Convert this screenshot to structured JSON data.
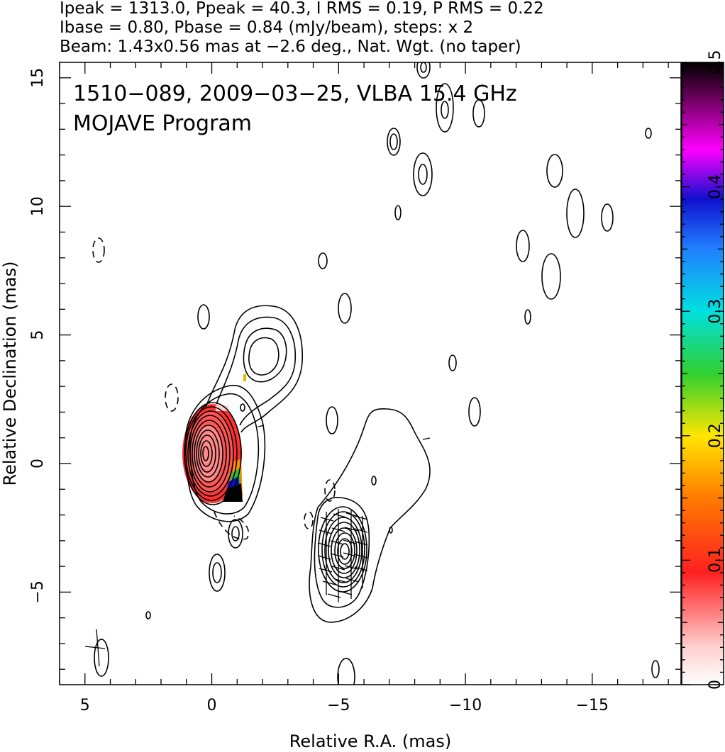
{
  "header": {
    "line1": "Ipeak = 1313.0, Ppeak = 40.3, I RMS = 0.19, P RMS = 0.22",
    "line2": "Ibase = 0.80, Pbase = 0.84 (mJy/beam), steps: x 2",
    "line3": "Beam: 1.43x0.56 mas at −2.6 deg., Nat. Wgt. (no taper)"
  },
  "annotation": {
    "line1": "1510−089, 2009−03−25, VLBA 15.4 GHz",
    "line2": "MOJAVE Program"
  },
  "chart_data": {
    "type": "contour",
    "source": "1510−089",
    "date": "2009−03−25",
    "instrument": "VLBA 15.4 GHz",
    "xlabel": "Relative R.A. (mas)",
    "ylabel": "Relative Declination (mas)",
    "xlim": [
      6,
      -18.5
    ],
    "ylim": [
      -8.6,
      15.6
    ],
    "x_ticks": [
      5,
      0,
      -5,
      -10,
      -15
    ],
    "x_tick_labels": [
      "5",
      "0",
      "−5",
      "−10",
      "−15"
    ],
    "y_ticks": [
      -5,
      0,
      5,
      10,
      15
    ],
    "y_tick_labels": [
      "−5",
      "0",
      "5",
      "10",
      "15"
    ],
    "colorbar": {
      "label_values": [
        0,
        0.1,
        0.2,
        0.3,
        0.4,
        0.5
      ],
      "label_text": [
        "0",
        "0.1",
        "0.2",
        "0.3",
        "0.4",
        "0.5"
      ],
      "range": [
        0,
        0.5
      ]
    },
    "core": {
      "ra": 0.0,
      "dec": 0.3,
      "levels": 12
    },
    "jet_component": {
      "ra": -2.3,
      "dec": 4.2
    },
    "southwest_component": {
      "ra": -5.1,
      "dec": -3.7
    }
  }
}
